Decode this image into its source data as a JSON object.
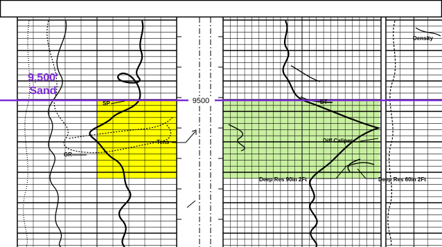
{
  "sand_label": {
    "line1": "9,500'",
    "line2": "Sand"
  },
  "depth_label": "9500",
  "curve_labels": {
    "sp": "SP",
    "gr": "GR",
    "tens": "Tens",
    "dt": "DT",
    "density": "Density",
    "diff_caliper": "Diff Caliper",
    "deep_res_90": "Deep Res 90in 2Ft",
    "deep_res_60": "Deep Res 60in 2Ft"
  },
  "colors": {
    "sand_line": "#7a2bd6",
    "left_highlight": "#ffff00",
    "right_highlight": "#c8f0a0",
    "grid": "#000000",
    "background": "#ffffff"
  }
}
